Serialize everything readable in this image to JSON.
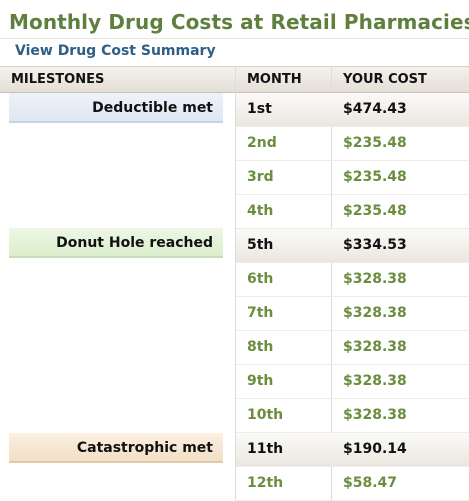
{
  "page": {
    "title": "Monthly Drug Costs at Retail Pharmacies",
    "summary_link": "View Drug Cost Summary"
  },
  "table": {
    "headers": {
      "milestones": "MILESTONES",
      "month": "MONTH",
      "cost": "YOUR COST"
    },
    "milestones": [
      {
        "label": "Deductible met",
        "month": "1st",
        "color": "#dfe7f4"
      },
      {
        "label": "Donut Hole reached",
        "month": "5th",
        "color": "#dceecd"
      },
      {
        "label": "Catastrophic met",
        "month": "11th",
        "color": "#f2dfc6"
      }
    ],
    "rows": [
      {
        "month": "1st",
        "cost": "$474.43",
        "milestone": true
      },
      {
        "month": "2nd",
        "cost": "$235.48",
        "milestone": false
      },
      {
        "month": "3rd",
        "cost": "$235.48",
        "milestone": false
      },
      {
        "month": "4th",
        "cost": "$235.48",
        "milestone": false
      },
      {
        "month": "5th",
        "cost": "$334.53",
        "milestone": true
      },
      {
        "month": "6th",
        "cost": "$328.38",
        "milestone": false
      },
      {
        "month": "7th",
        "cost": "$328.38",
        "milestone": false
      },
      {
        "month": "8th",
        "cost": "$328.38",
        "milestone": false
      },
      {
        "month": "9th",
        "cost": "$328.38",
        "milestone": false
      },
      {
        "month": "10th",
        "cost": "$328.38",
        "milestone": false
      },
      {
        "month": "11th",
        "cost": "$190.14",
        "milestone": true
      },
      {
        "month": "12th",
        "cost": "$58.47",
        "milestone": false
      }
    ]
  },
  "colors": {
    "title": "#5e7f3d",
    "link": "#2f5f86",
    "regular_row_text": "#6b8e3e",
    "milestone_row_text": "#111111"
  }
}
